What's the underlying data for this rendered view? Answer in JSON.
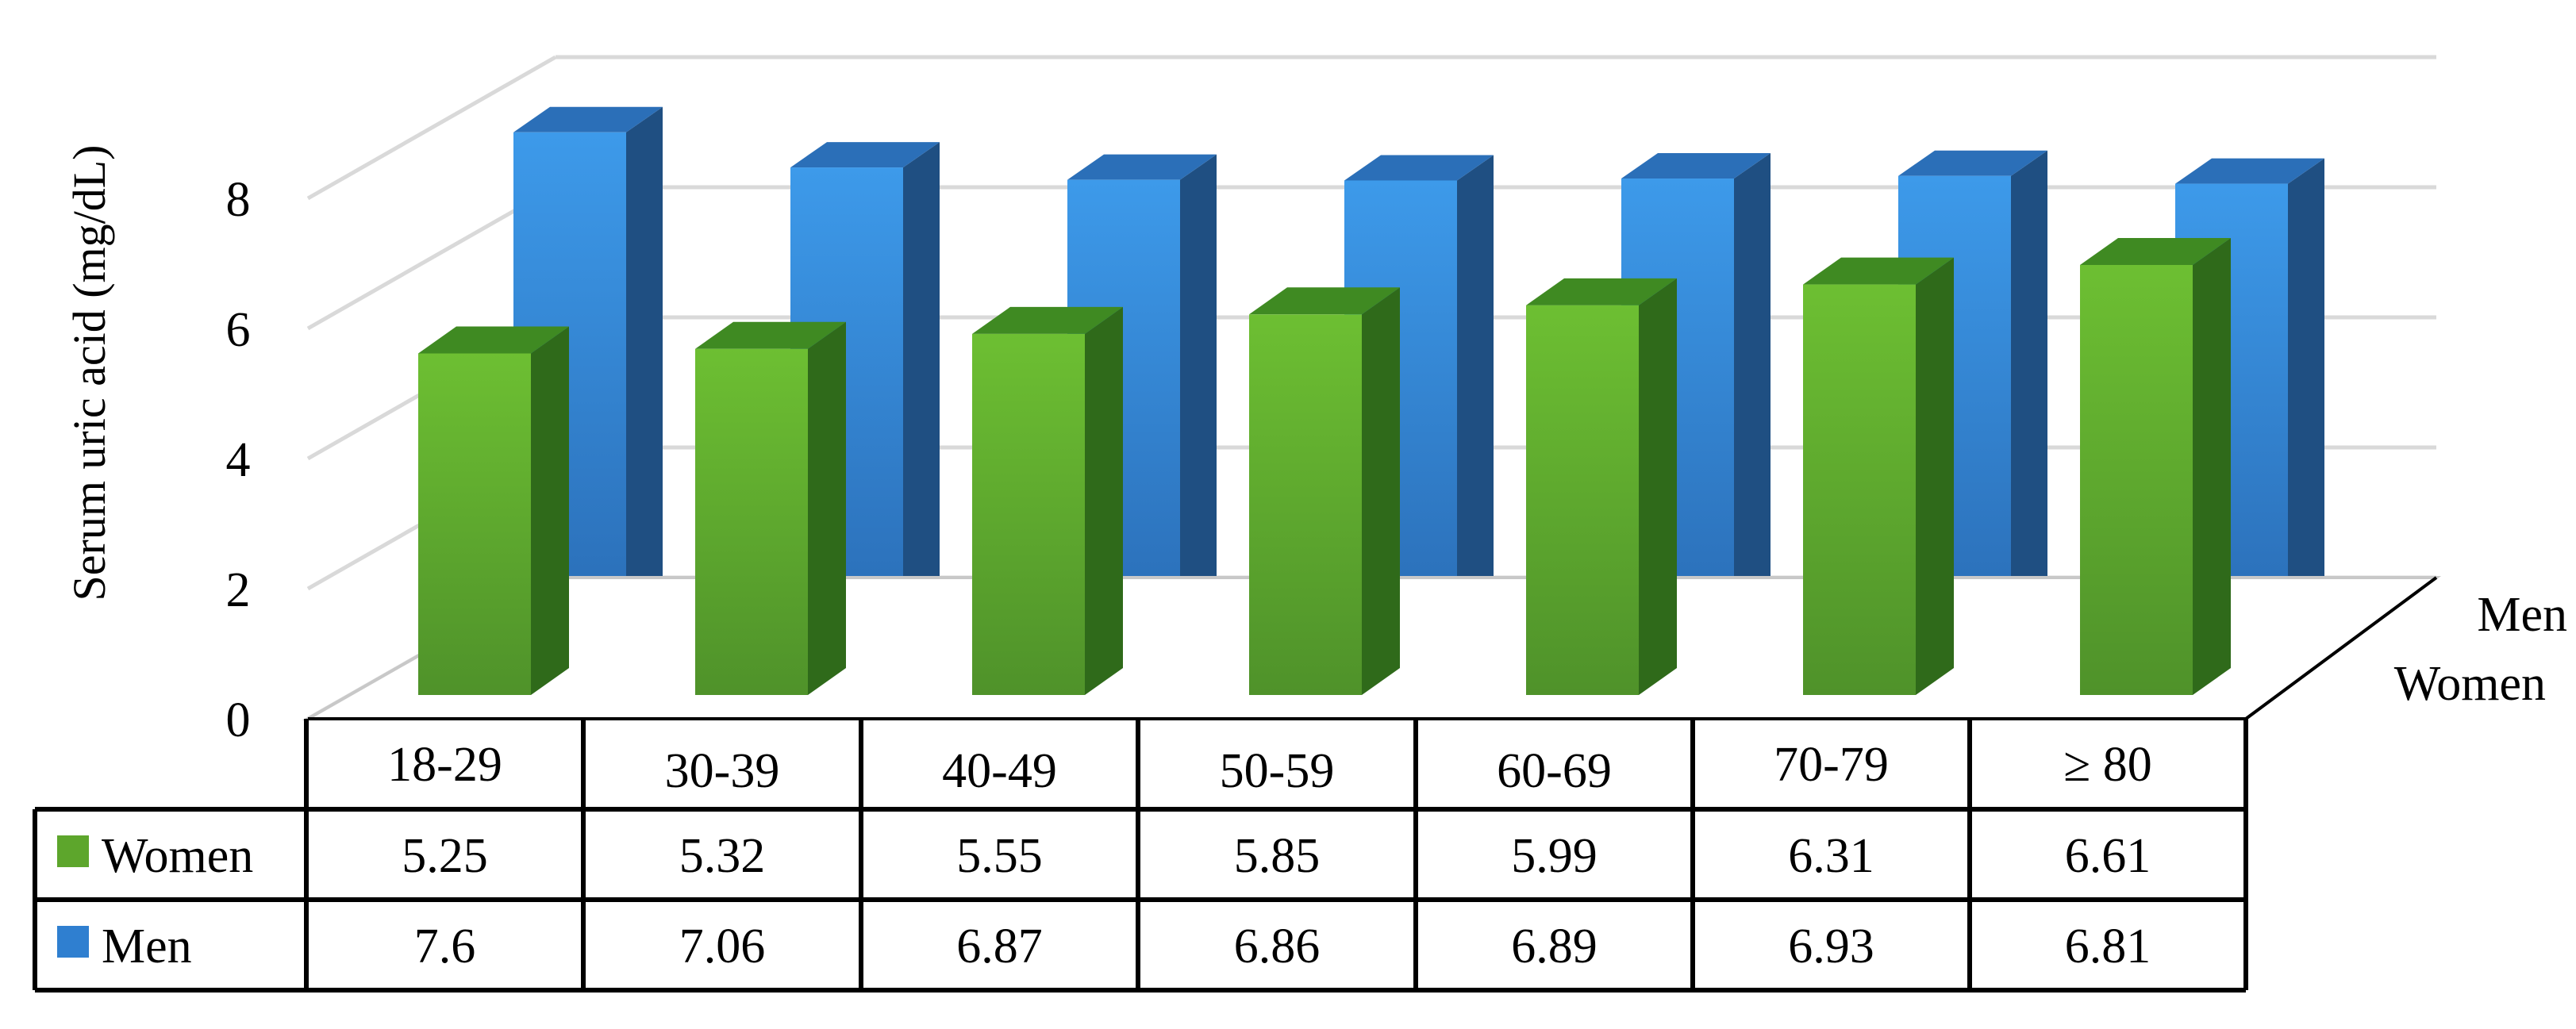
{
  "chart_data": {
    "type": "bar",
    "style": "3d-clustered-with-data-table",
    "categories": [
      "18-29",
      "30-39",
      "40-49",
      "50-59",
      "60-69",
      "70-79",
      "≥ 80"
    ],
    "series": [
      {
        "name": "Women",
        "values": [
          5.25,
          5.32,
          5.55,
          5.85,
          5.99,
          6.31,
          6.61
        ],
        "color": "#5da62c"
      },
      {
        "name": "Men",
        "values": [
          7.6,
          7.06,
          6.87,
          6.86,
          6.89,
          6.93,
          6.81
        ],
        "color": "#2f7fd0"
      }
    ],
    "ylabel": "Serum uric acid (mg/dL)",
    "xlabel": "",
    "ylim": [
      0,
      8
    ],
    "yticks": [
      0,
      2,
      4,
      6,
      8
    ],
    "gridlines": true,
    "data_table": true,
    "depth_axis_labels": [
      "Men",
      "Women"
    ]
  }
}
